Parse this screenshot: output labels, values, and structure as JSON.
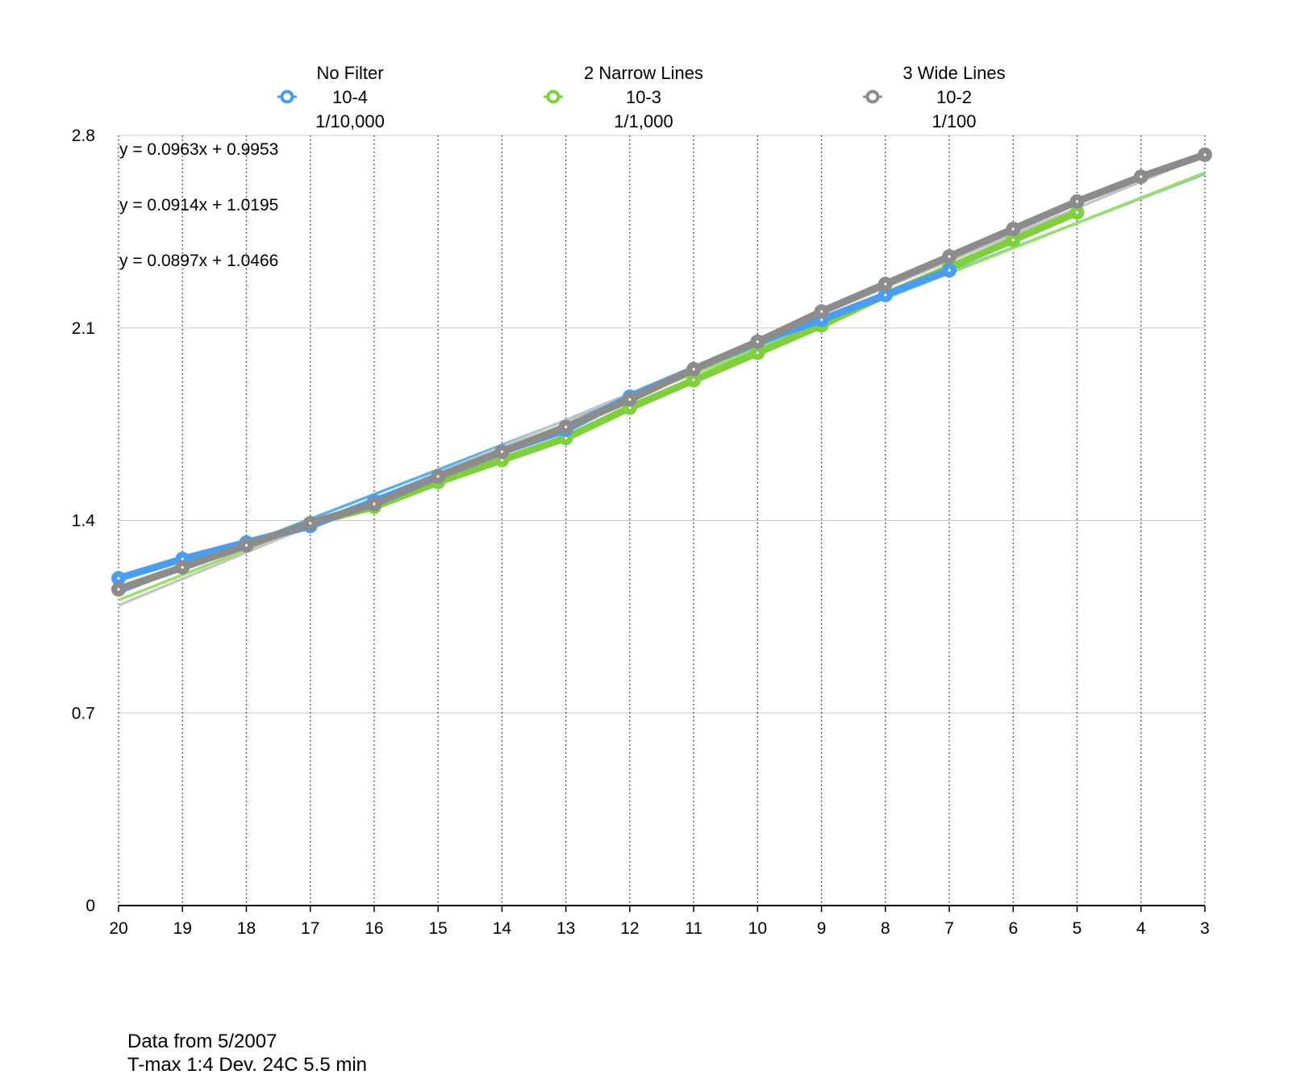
{
  "chart_data": {
    "type": "line",
    "x_categories": [
      "20",
      "19",
      "18",
      "17",
      "16",
      "15",
      "14",
      "13",
      "12",
      "11",
      "10",
      "9",
      "8",
      "7",
      "6",
      "5",
      "4",
      "3"
    ],
    "x_direction": "descending",
    "ylim": [
      0,
      2.8
    ],
    "y_ticks": [
      "0",
      "0.7",
      "1.4",
      "2.1",
      "2.8"
    ],
    "y_tick_values": [
      0,
      0.7,
      1.4,
      2.1,
      2.8
    ],
    "grid": {
      "horizontal": "solid",
      "vertical": "dotted"
    },
    "legend_position": "top",
    "series": [
      {
        "key": "no-filter",
        "legend_lines": [
          "No Filter",
          "10-4",
          "1/10,000"
        ],
        "color": "#4a9ef0",
        "trend_color": "#58b0ee",
        "values": [
          1.19,
          1.26,
          1.32,
          1.38,
          1.47,
          1.56,
          1.65,
          1.73,
          1.85,
          1.95,
          2.05,
          2.13,
          2.22,
          2.31
        ],
        "trendline": {
          "equation": "y = 0.0897x + 1.0466",
          "slope": 0.0897,
          "intercept": 1.0466
        }
      },
      {
        "key": "narrow-lines",
        "legend_lines": [
          "2 Narrow Lines",
          "10-3",
          "1/1,000"
        ],
        "color": "#7fcf3f",
        "trend_color": "#9adf6a",
        "values": [
          1.15,
          1.23,
          1.31,
          1.39,
          1.45,
          1.54,
          1.62,
          1.7,
          1.81,
          1.91,
          2.01,
          2.11,
          2.22,
          2.32,
          2.42,
          2.52
        ],
        "trendline": {
          "equation": "y = 0.0914x + 1.0195",
          "slope": 0.0914,
          "intercept": 1.0195
        }
      },
      {
        "key": "wide-lines",
        "legend_lines": [
          "3 Wide Lines",
          "10-2",
          "1/100"
        ],
        "color": "#8c8c8c",
        "trend_color": "#c4c4c4",
        "values": [
          1.15,
          1.23,
          1.31,
          1.39,
          1.46,
          1.56,
          1.65,
          1.74,
          1.84,
          1.95,
          2.05,
          2.16,
          2.26,
          2.36,
          2.46,
          2.56,
          2.65,
          2.73
        ],
        "trendline": {
          "equation": "y = 0.0963x + 0.9953",
          "slope": 0.0963,
          "intercept": 0.9953
        }
      }
    ],
    "notes": [
      "Data from 5/2007",
      "T-max 1:4 Dev. 24C 5.5 min"
    ]
  }
}
